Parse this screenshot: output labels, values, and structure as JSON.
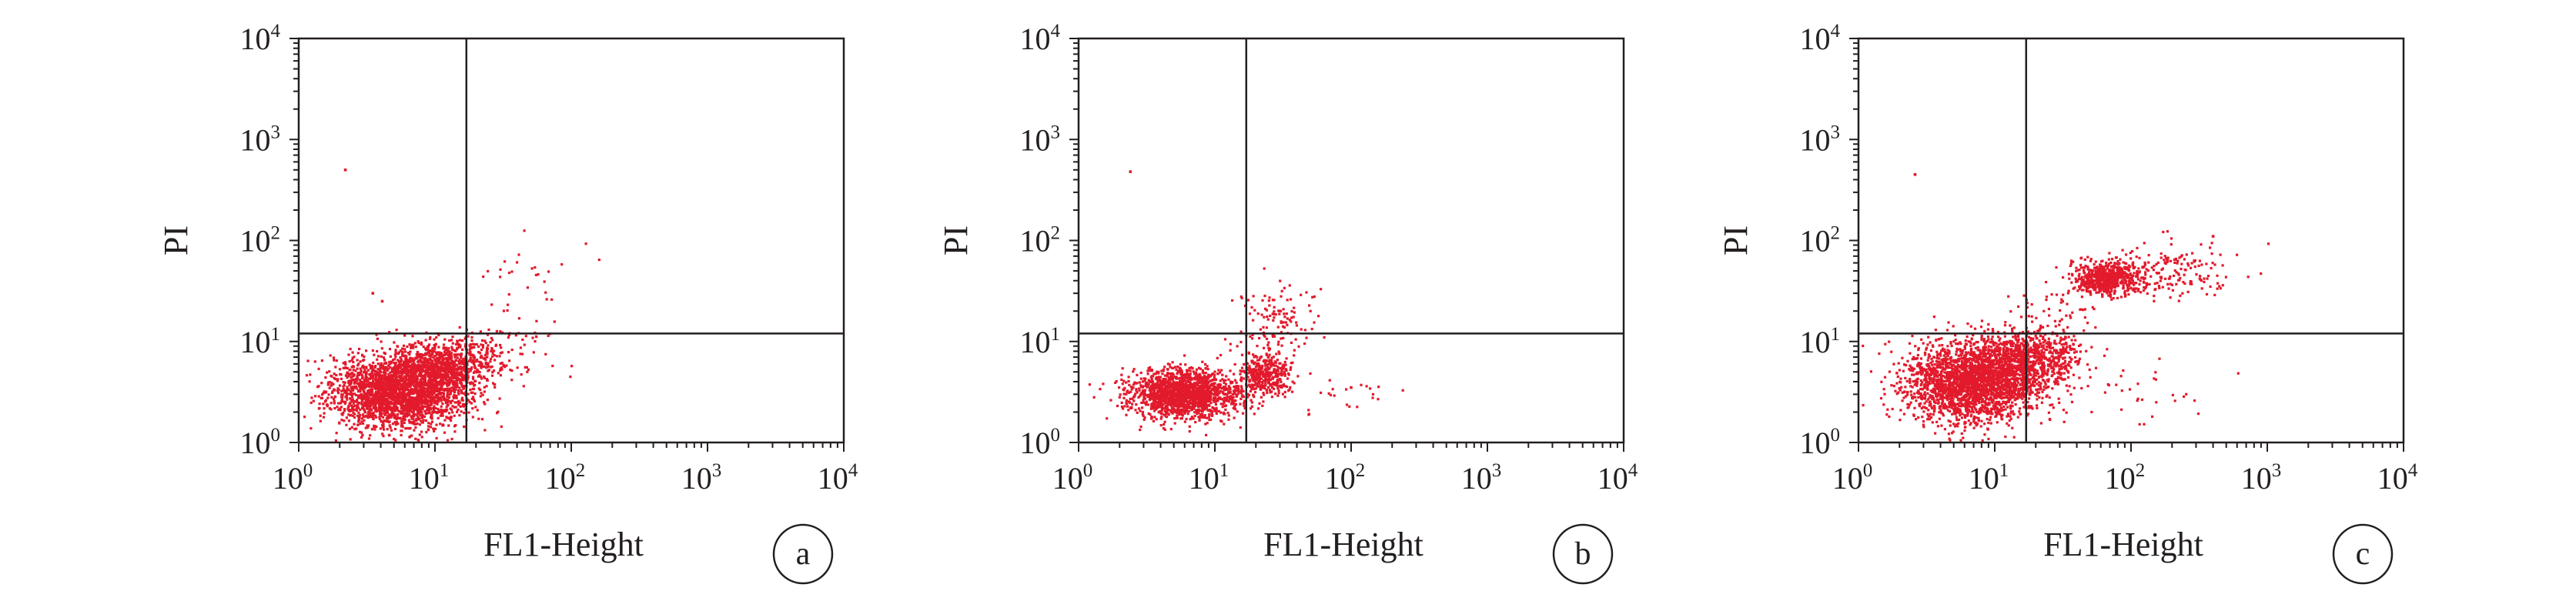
{
  "figure": {
    "accent_color": "#e21a2c",
    "axis_color": "#231f20",
    "background": "#ffffff"
  },
  "chart_data": [
    {
      "type": "scatter",
      "panel_label": "a",
      "xlabel": "FL1-Height",
      "ylabel": "PI",
      "xscale": "log",
      "yscale": "log",
      "xlim": [
        1,
        10000
      ],
      "ylim": [
        1,
        10000
      ],
      "tick_labels": [
        {
          "base": "10",
          "exp": "0"
        },
        {
          "base": "10",
          "exp": "1"
        },
        {
          "base": "10",
          "exp": "2"
        },
        {
          "base": "10",
          "exp": "3"
        },
        {
          "base": "10",
          "exp": "4"
        }
      ],
      "quadrant_gate": {
        "x": 17,
        "y": 12
      },
      "grid": false,
      "legend": "none",
      "series": [
        {
          "color": "#e21a2c",
          "clusters": [
            {
              "x_center": 5.5,
              "y_center": 3.2,
              "x_spread": 0.25,
              "y_spread": 0.18,
              "count": 2600
            },
            {
              "x_center": 12,
              "y_center": 5.8,
              "x_spread": 0.18,
              "y_spread": 0.12,
              "count": 700
            },
            {
              "x_center": 28,
              "y_center": 7.5,
              "x_spread": 0.2,
              "y_spread": 0.15,
              "count": 90
            },
            {
              "x_center": 50,
              "y_center": 40,
              "x_spread": 0.2,
              "y_spread": 0.22,
              "count": 30
            }
          ],
          "points": [
            {
              "x": 2.2,
              "y": 500
            },
            {
              "x": 3.5,
              "y": 30
            },
            {
              "x": 4.1,
              "y": 25
            }
          ]
        }
      ]
    },
    {
      "type": "scatter",
      "panel_label": "b",
      "xlabel": "FL1-Height",
      "ylabel": "PI",
      "xscale": "log",
      "yscale": "log",
      "xlim": [
        1,
        10000
      ],
      "ylim": [
        1,
        10000
      ],
      "tick_labels": [
        {
          "base": "10",
          "exp": "0"
        },
        {
          "base": "10",
          "exp": "1"
        },
        {
          "base": "10",
          "exp": "2"
        },
        {
          "base": "10",
          "exp": "3"
        },
        {
          "base": "10",
          "exp": "4"
        }
      ],
      "quadrant_gate": {
        "x": 17,
        "y": 12
      },
      "grid": false,
      "legend": "none",
      "series": [
        {
          "color": "#e21a2c",
          "clusters": [
            {
              "x_center": 6,
              "y_center": 3.0,
              "x_spread": 0.2,
              "y_spread": 0.12,
              "count": 1700
            },
            {
              "x_center": 23,
              "y_center": 4.6,
              "x_spread": 0.09,
              "y_spread": 0.1,
              "count": 380
            },
            {
              "x_center": 28,
              "y_center": 15,
              "x_spread": 0.16,
              "y_spread": 0.2,
              "count": 130
            },
            {
              "x_center": 60,
              "y_center": 3.0,
              "x_spread": 0.3,
              "y_spread": 0.15,
              "count": 30
            }
          ],
          "points": [
            {
              "x": 2.4,
              "y": 480
            },
            {
              "x": 100,
              "y": 3.5
            }
          ]
        }
      ]
    },
    {
      "type": "scatter",
      "panel_label": "c",
      "xlabel": "FL1-Height",
      "ylabel": "PI",
      "xscale": "log",
      "yscale": "log",
      "xlim": [
        1,
        10000
      ],
      "ylim": [
        1,
        10000
      ],
      "tick_labels": [
        {
          "base": "10",
          "exp": "0"
        },
        {
          "base": "10",
          "exp": "1"
        },
        {
          "base": "10",
          "exp": "2"
        },
        {
          "base": "10",
          "exp": "3"
        },
        {
          "base": "10",
          "exp": "4"
        }
      ],
      "quadrant_gate": {
        "x": 17,
        "y": 12
      },
      "grid": false,
      "legend": "none",
      "series": [
        {
          "color": "#e21a2c",
          "clusters": [
            {
              "x_center": 7,
              "y_center": 4.0,
              "x_spread": 0.25,
              "y_spread": 0.2,
              "count": 2600
            },
            {
              "x_center": 20,
              "y_center": 7.0,
              "x_spread": 0.18,
              "y_spread": 0.14,
              "count": 650
            },
            {
              "x_center": 65,
              "y_center": 42,
              "x_spread": 0.12,
              "y_spread": 0.08,
              "count": 650
            },
            {
              "x_center": 170,
              "y_center": 50,
              "x_spread": 0.25,
              "y_spread": 0.15,
              "count": 180
            },
            {
              "x_center": 30,
              "y_center": 20,
              "x_spread": 0.2,
              "y_spread": 0.15,
              "count": 40
            },
            {
              "x_center": 150,
              "y_center": 3.0,
              "x_spread": 0.3,
              "y_spread": 0.15,
              "count": 30
            }
          ],
          "points": [
            {
              "x": 2.6,
              "y": 450
            },
            {
              "x": 400,
              "y": 110
            }
          ]
        }
      ]
    }
  ]
}
